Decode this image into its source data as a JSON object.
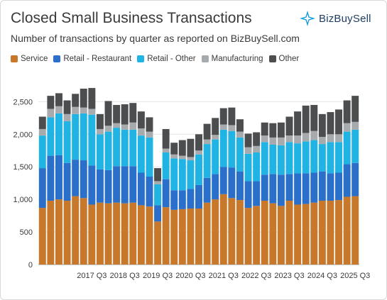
{
  "title": "Closed Small Business Transactions",
  "subtitle": "Number of transactions by quarter as reported on BizBuySell.com",
  "brand": {
    "name": "BizBuySell",
    "logo_icon": "compass-star-icon",
    "logo_color": "#1a9ed8"
  },
  "chart_data": {
    "type": "bar",
    "stacked": true,
    "quarters": [
      "2016 Q1",
      "2016 Q2",
      "2016 Q3",
      "2016 Q4",
      "2017 Q1",
      "2017 Q2",
      "2017 Q3",
      "2017 Q4",
      "2018 Q1",
      "2018 Q2",
      "2018 Q3",
      "2018 Q4",
      "2019 Q1",
      "2019 Q2",
      "2019 Q3",
      "2019 Q4",
      "2020 Q1",
      "2020 Q2",
      "2020 Q3",
      "2020 Q4",
      "2021 Q1",
      "2021 Q2",
      "2021 Q3",
      "2021 Q4",
      "2022 Q1",
      "2022 Q2",
      "2022 Q3",
      "2022 Q4",
      "2023 Q1",
      "2023 Q2",
      "2023 Q3",
      "2023 Q4",
      "2024 Q1",
      "2024 Q2",
      "2024 Q3",
      "2024 Q4",
      "2025 Q1",
      "2025 Q2",
      "2025 Q3"
    ],
    "x_tick_labels": [
      "2017 Q3",
      "2018 Q3",
      "2019 Q3",
      "2020 Q3",
      "2021 Q3",
      "2022 Q3",
      "2023 Q3",
      "2024 Q3",
      "2025 Q3"
    ],
    "y_ticks": [
      0,
      500,
      1000,
      1500,
      2000,
      2500
    ],
    "y_tick_labels": [
      "0",
      "500",
      "1,000",
      "1,500",
      "2,000",
      "2,500"
    ],
    "ylim": [
      0,
      2700
    ],
    "grid": true,
    "legend_position": "top-left",
    "series": [
      {
        "name": "Service",
        "color": "#c8782a",
        "values": [
          870,
          980,
          1000,
          980,
          1050,
          1020,
          920,
          950,
          940,
          950,
          940,
          950,
          910,
          890,
          660,
          880,
          840,
          850,
          860,
          860,
          950,
          1000,
          1080,
          1020,
          990,
          870,
          900,
          980,
          940,
          900,
          980,
          920,
          930,
          950,
          980,
          980,
          990,
          1040,
          1050
        ]
      },
      {
        "name": "Retail - Restaurant",
        "color": "#2a6fc9",
        "values": [
          610,
          690,
          680,
          580,
          560,
          580,
          600,
          510,
          510,
          560,
          570,
          560,
          500,
          460,
          250,
          430,
          300,
          290,
          300,
          360,
          380,
          390,
          420,
          470,
          440,
          410,
          380,
          400,
          450,
          480,
          410,
          480,
          470,
          460,
          450,
          420,
          420,
          500,
          510
        ]
      },
      {
        "name": "Retail - Other",
        "color": "#1fb4e4",
        "values": [
          500,
          590,
          640,
          640,
          700,
          720,
          780,
          540,
          590,
          590,
          560,
          560,
          570,
          600,
          320,
          410,
          490,
          480,
          440,
          470,
          520,
          530,
          570,
          560,
          520,
          420,
          440,
          500,
          450,
          450,
          490,
          460,
          490,
          500,
          420,
          480,
          470,
          500,
          510
        ]
      },
      {
        "name": "Manufacturing",
        "color": "#a8abae",
        "values": [
          100,
          130,
          110,
          110,
          110,
          90,
          90,
          80,
          90,
          70,
          80,
          110,
          110,
          90,
          50,
          60,
          60,
          50,
          50,
          60,
          70,
          70,
          80,
          90,
          90,
          100,
          100,
          100,
          110,
          120,
          100,
          120,
          130,
          140,
          110,
          120,
          120,
          130,
          120
        ]
      },
      {
        "name": "Other",
        "color": "#4c4d4f",
        "values": [
          190,
          200,
          200,
          210,
          200,
          290,
          320,
          230,
          380,
          280,
          310,
          300,
          260,
          220,
          200,
          300,
          180,
          240,
          280,
          250,
          240,
          260,
          250,
          270,
          190,
          210,
          210,
          200,
          220,
          230,
          290,
          370,
          420,
          400,
          350,
          340,
          380,
          350,
          400
        ]
      }
    ]
  }
}
